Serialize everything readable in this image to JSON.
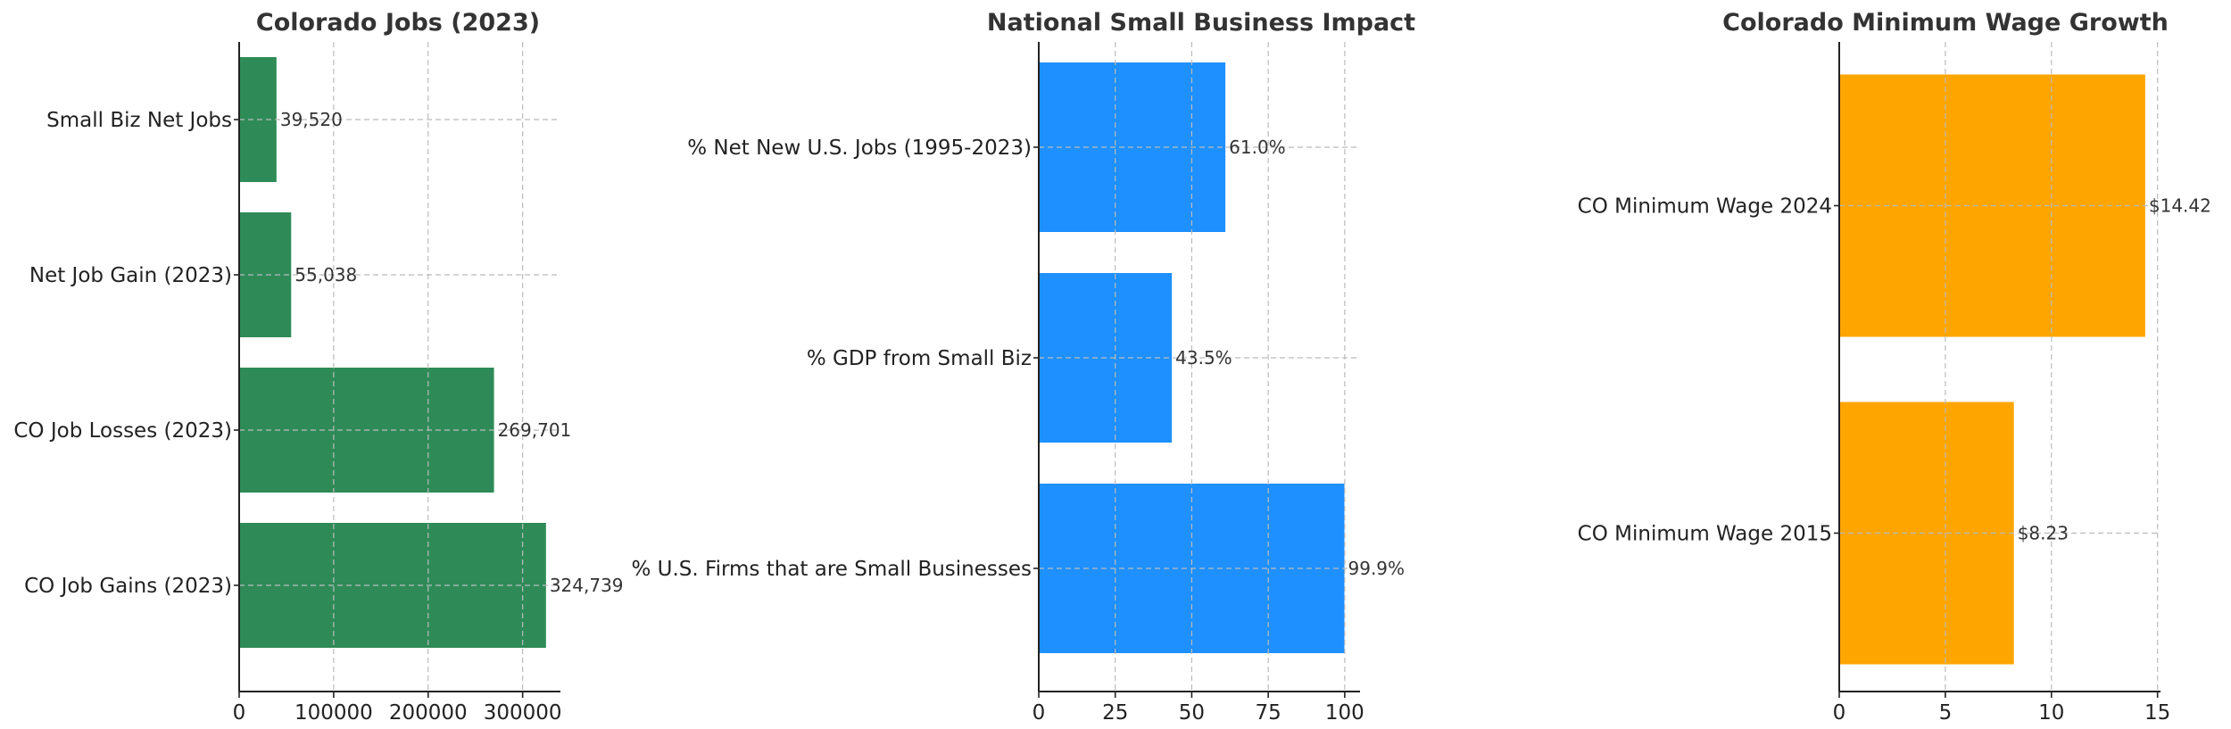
{
  "chart_data": [
    {
      "type": "bar",
      "orientation": "horizontal",
      "title": "Colorado Jobs (2023)",
      "categories": [
        "Small Biz Net Jobs",
        "Net Job Gain (2023)",
        "CO Job Losses (2023)",
        "CO Job Gains (2023)"
      ],
      "values": [
        39520,
        55038,
        269701,
        324739
      ],
      "value_labels": [
        "39,520",
        "55,038",
        "269,701",
        "324,739"
      ],
      "xlim": [
        0,
        340000
      ],
      "xticks": [
        0,
        100000,
        200000,
        300000
      ],
      "xtick_labels": [
        "0",
        "100000",
        "200000",
        "300000"
      ],
      "color": "#2e8b57",
      "grid": true
    },
    {
      "type": "bar",
      "orientation": "horizontal",
      "title": "National Small Business Impact",
      "categories": [
        "% Net New U.S. Jobs (1995-2023)",
        "% GDP from Small Biz",
        "% U.S. Firms that are Small Businesses"
      ],
      "values": [
        61.0,
        43.5,
        99.9
      ],
      "value_labels": [
        "61.0%",
        "43.5%",
        "99.9%"
      ],
      "xlim": [
        0,
        105
      ],
      "xticks": [
        0,
        25,
        50,
        75,
        100
      ],
      "xtick_labels": [
        "0",
        "25",
        "50",
        "75",
        "100"
      ],
      "color": "#1e90ff",
      "grid": true
    },
    {
      "type": "bar",
      "orientation": "horizontal",
      "title": "Colorado Minimum Wage Growth",
      "categories": [
        "CO Minimum Wage 2024",
        "CO Minimum Wage 2015"
      ],
      "values": [
        14.42,
        8.23
      ],
      "value_labels": [
        "$14.42",
        "$8.23"
      ],
      "xlim": [
        0,
        15.14
      ],
      "xticks": [
        0,
        5,
        10,
        15
      ],
      "xtick_labels": [
        "0",
        "5",
        "10",
        "15"
      ],
      "color": "#ffa500",
      "grid": true
    }
  ]
}
